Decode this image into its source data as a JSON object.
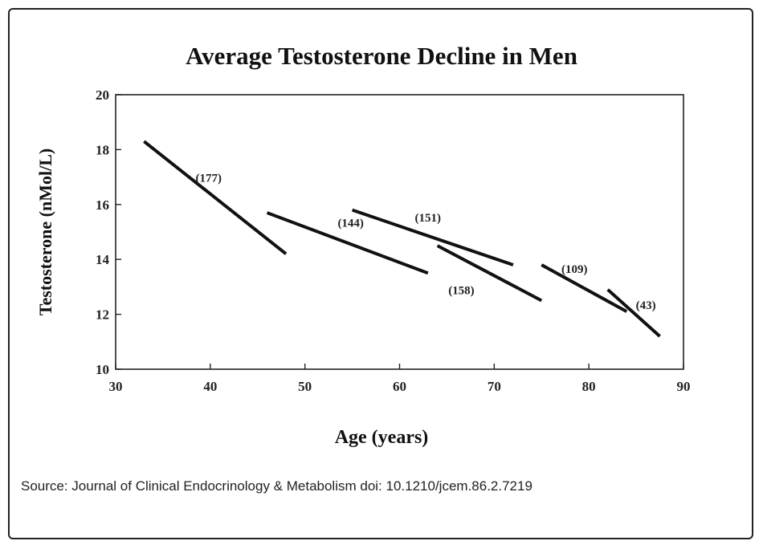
{
  "source": "Source: Journal of Clinical Endocrinology & Metabolism doi: 10.1210/jcem.86.2.7219",
  "chart_data": {
    "type": "line",
    "title": "Average Testosterone Decline in Men",
    "xlabel": "Age (years)",
    "ylabel": "Testosterone (nMol/L)",
    "xlim": [
      30,
      90
    ],
    "ylim": [
      10,
      20
    ],
    "xticks": [
      30,
      40,
      50,
      60,
      70,
      80,
      90
    ],
    "yticks": [
      10,
      12,
      14,
      16,
      18,
      20
    ],
    "grid": false,
    "legend": "none",
    "series": [
      {
        "label": "(177)",
        "x": [
          33,
          48
        ],
        "y": [
          18.3,
          14.2
        ]
      },
      {
        "label": "(144)",
        "x": [
          46,
          63
        ],
        "y": [
          15.7,
          13.5
        ]
      },
      {
        "label": "(151)",
        "x": [
          55,
          72
        ],
        "y": [
          15.8,
          13.8
        ]
      },
      {
        "label": "(158)",
        "x": [
          64,
          75
        ],
        "y": [
          14.5,
          12.5
        ]
      },
      {
        "label": "(109)",
        "x": [
          75,
          84
        ],
        "y": [
          13.8,
          12.1
        ]
      },
      {
        "label": "(43)",
        "x": [
          82,
          87.5
        ],
        "y": [
          12.9,
          11.2
        ]
      }
    ]
  }
}
